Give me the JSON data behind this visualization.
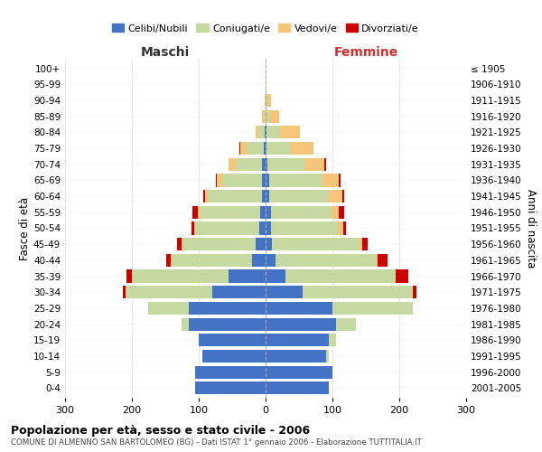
{
  "age_groups": [
    "0-4",
    "5-9",
    "10-14",
    "15-19",
    "20-24",
    "25-29",
    "30-34",
    "35-39",
    "40-44",
    "45-49",
    "50-54",
    "55-59",
    "60-64",
    "65-69",
    "70-74",
    "75-79",
    "80-84",
    "85-89",
    "90-94",
    "95-99",
    "100+"
  ],
  "birth_years": [
    "2001-2005",
    "1996-2000",
    "1991-1995",
    "1986-1990",
    "1981-1985",
    "1976-1980",
    "1971-1975",
    "1966-1970",
    "1961-1965",
    "1956-1960",
    "1951-1955",
    "1946-1950",
    "1941-1945",
    "1936-1940",
    "1931-1935",
    "1926-1930",
    "1921-1925",
    "1916-1920",
    "1911-1915",
    "1906-1910",
    "≤ 1905"
  ],
  "males": {
    "celibe": [
      105,
      105,
      95,
      100,
      115,
      115,
      80,
      55,
      20,
      15,
      10,
      8,
      6,
      5,
      5,
      3,
      2,
      0,
      0,
      0,
      0
    ],
    "coniugato": [
      0,
      0,
      0,
      0,
      10,
      60,
      130,
      145,
      120,
      110,
      95,
      90,
      80,
      60,
      40,
      25,
      8,
      2,
      0,
      0,
      0
    ],
    "vedovo": [
      0,
      0,
      0,
      0,
      0,
      0,
      0,
      0,
      2,
      1,
      2,
      3,
      5,
      8,
      10,
      10,
      5,
      3,
      1,
      0,
      0
    ],
    "divorziato": [
      0,
      0,
      0,
      0,
      0,
      0,
      3,
      8,
      6,
      6,
      4,
      8,
      2,
      1,
      1,
      1,
      0,
      0,
      0,
      0,
      0
    ]
  },
  "females": {
    "nubile": [
      95,
      100,
      90,
      95,
      105,
      100,
      55,
      30,
      15,
      10,
      8,
      8,
      5,
      5,
      3,
      2,
      2,
      0,
      0,
      0,
      0
    ],
    "coniugata": [
      0,
      0,
      5,
      10,
      30,
      120,
      165,
      165,
      150,
      130,
      100,
      90,
      90,
      80,
      55,
      35,
      20,
      5,
      3,
      0,
      0
    ],
    "vedova": [
      0,
      0,
      0,
      0,
      0,
      0,
      0,
      0,
      3,
      5,
      8,
      12,
      20,
      25,
      30,
      35,
      30,
      15,
      5,
      2,
      0
    ],
    "divorziata": [
      0,
      0,
      0,
      0,
      0,
      0,
      5,
      18,
      15,
      8,
      4,
      8,
      3,
      2,
      2,
      0,
      0,
      0,
      0,
      0,
      0
    ]
  },
  "colors": {
    "celibe": "#4472C4",
    "coniugato": "#C5D9A0",
    "vedovo": "#F5C57A",
    "divorziato": "#CC0000"
  },
  "xlim": 300,
  "title": "Popolazione per età, sesso e stato civile - 2006",
  "subtitle": "COMUNE DI ALMENNO SAN BARTOLOMEO (BG) - Dati ISTAT 1° gennaio 2006 - Elaborazione TUTTITALIA.IT",
  "ylabel_left": "Fasce di età",
  "ylabel_right": "Anni di nascita",
  "xlabel_left": "Maschi",
  "xlabel_right": "Femmine",
  "legend_labels": [
    "Celibi/Nubili",
    "Coniugati/e",
    "Vedovi/e",
    "Divorziati/e"
  ],
  "background_color": "#FFFFFF",
  "grid_color": "#CCCCCC"
}
